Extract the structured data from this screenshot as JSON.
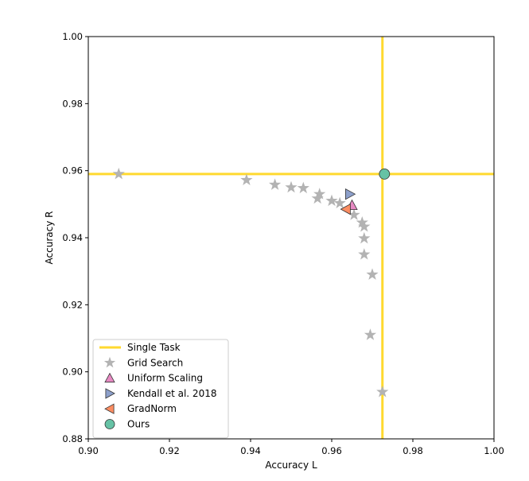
{
  "chart_data": {
    "type": "scatter",
    "title": "",
    "xlabel": "Accuracy L",
    "ylabel": "Accuracy R",
    "xlim": [
      0.9,
      1.0
    ],
    "ylim": [
      0.88,
      1.0
    ],
    "xticks": [
      "0.90",
      "0.92",
      "0.94",
      "0.96",
      "0.98",
      "1.00"
    ],
    "yticks": [
      "0.88",
      "0.90",
      "0.92",
      "0.94",
      "0.96",
      "0.98",
      "1.00"
    ],
    "grid": false,
    "legend_position": "bottom-left",
    "single_task": {
      "name": "Single Task",
      "x": 0.9725,
      "y": 0.959,
      "color": "#ffd92f"
    },
    "series": [
      {
        "name": "Grid Search",
        "marker": "star",
        "color": "#b3b3b3",
        "points": [
          [
            0.9075,
            0.959
          ],
          [
            0.939,
            0.9572
          ],
          [
            0.946,
            0.9558
          ],
          [
            0.95,
            0.955
          ],
          [
            0.953,
            0.9548
          ],
          [
            0.9565,
            0.9517
          ],
          [
            0.957,
            0.953
          ],
          [
            0.96,
            0.951
          ],
          [
            0.962,
            0.9503
          ],
          [
            0.9655,
            0.9468
          ],
          [
            0.9675,
            0.9445
          ],
          [
            0.968,
            0.9433
          ],
          [
            0.968,
            0.9398
          ],
          [
            0.968,
            0.935
          ],
          [
            0.97,
            0.929
          ],
          [
            0.9695,
            0.911
          ],
          [
            0.9725,
            0.894
          ]
        ]
      },
      {
        "name": "Uniform Scaling",
        "marker": "triangle-up",
        "color": "#e78ac3",
        "points": [
          [
            0.965,
            0.9497
          ]
        ]
      },
      {
        "name": "Kendall et al. 2018",
        "marker": "triangle-right",
        "color": "#8da0cb",
        "points": [
          [
            0.9645,
            0.953
          ]
        ]
      },
      {
        "name": "GradNorm",
        "marker": "triangle-left",
        "color": "#fc8d62",
        "points": [
          [
            0.9635,
            0.9485
          ]
        ]
      },
      {
        "name": "Ours",
        "marker": "circle",
        "color": "#66c2a5",
        "points": [
          [
            0.973,
            0.959
          ]
        ]
      }
    ]
  }
}
